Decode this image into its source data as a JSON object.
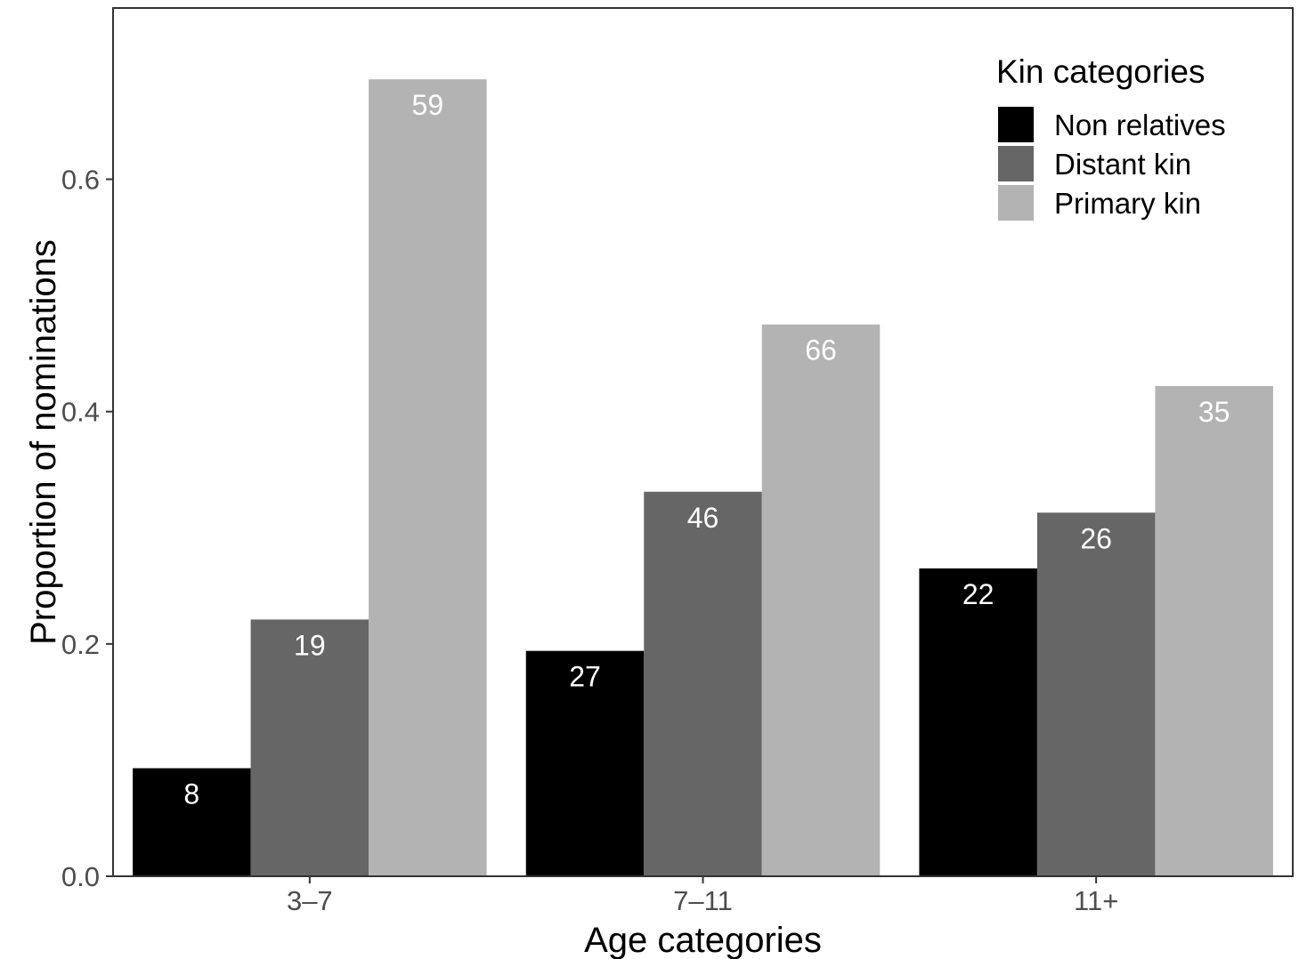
{
  "chart_data": {
    "type": "bar",
    "title": "",
    "xlabel": "Age categories",
    "ylabel": "Proportion of nominations",
    "categories": [
      "3–7",
      "7–11",
      "11+"
    ],
    "ylim": [
      0,
      0.7474
    ],
    "yticks": [
      0.0,
      0.2,
      0.4,
      0.6
    ],
    "ytick_labels": [
      "0.0",
      "0.2",
      "0.4",
      "0.6"
    ],
    "grid": false,
    "legend": {
      "title": "Kin categories",
      "placement": "top-right"
    },
    "series": [
      {
        "name": "Non relatives",
        "color": "#000000",
        "values": [
          0.093,
          0.194,
          0.265
        ],
        "labels": [
          "8",
          "27",
          "22"
        ]
      },
      {
        "name": "Distant kin",
        "color": "#666666",
        "values": [
          0.221,
          0.331,
          0.313
        ],
        "labels": [
          "19",
          "46",
          "26"
        ]
      },
      {
        "name": "Primary kin",
        "color": "#b3b3b3",
        "values": [
          0.686,
          0.475,
          0.422
        ],
        "labels": [
          "59",
          "66",
          "35"
        ]
      }
    ]
  }
}
